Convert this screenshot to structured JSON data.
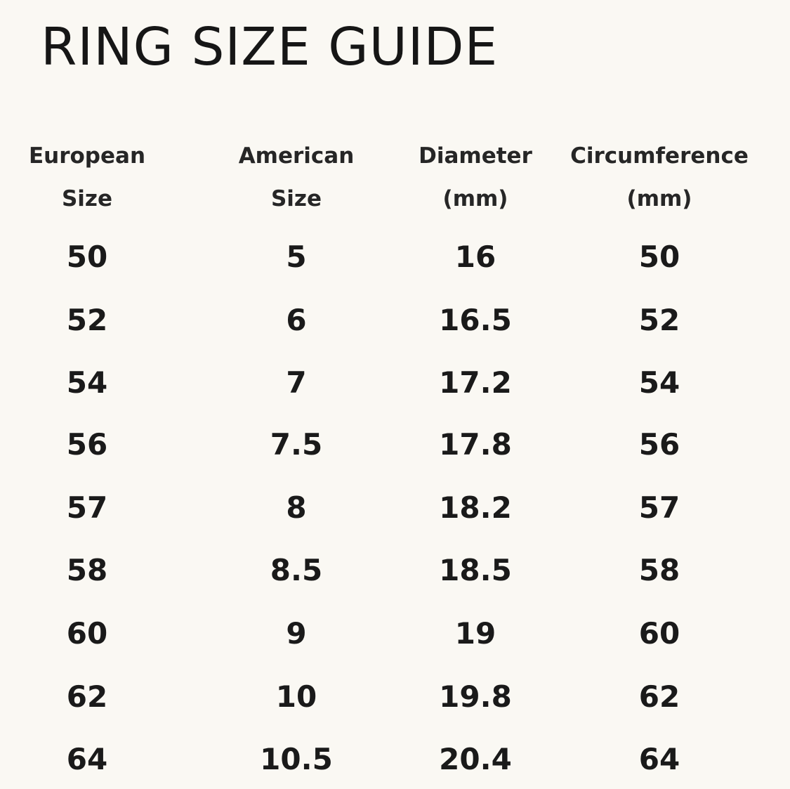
{
  "title": "RING SIZE GUIDE",
  "table": {
    "headers": [
      [
        "European",
        "Size"
      ],
      [
        "American",
        "Size"
      ],
      [
        "Diameter",
        "(mm)"
      ],
      [
        "Circumference",
        "(mm)"
      ]
    ],
    "rows": [
      [
        "50",
        "5",
        "16",
        "50"
      ],
      [
        "52",
        "6",
        "16.5",
        "52"
      ],
      [
        "54",
        "7",
        "17.2",
        "54"
      ],
      [
        "56",
        "7.5",
        "17.8",
        "56"
      ],
      [
        "57",
        "8",
        "18.2",
        "57"
      ],
      [
        "58",
        "8.5",
        "18.5",
        "58"
      ],
      [
        "60",
        "9",
        "19",
        "60"
      ],
      [
        "62",
        "10",
        "19.8",
        "62"
      ],
      [
        "64",
        "10.5",
        "20.4",
        "64"
      ]
    ]
  }
}
